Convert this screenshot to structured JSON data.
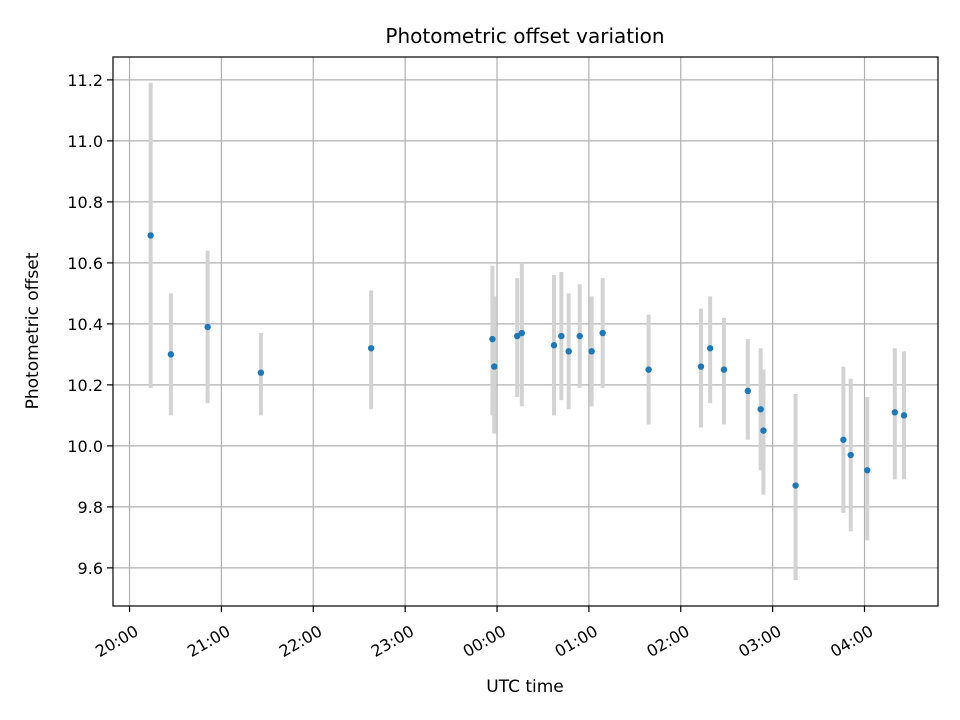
{
  "chart_data": {
    "type": "scatter",
    "title": "Photometric offset variation",
    "xlabel": "UTC time",
    "ylabel": "Photometric offset",
    "grid": true,
    "x_unit": "UTC time (hours)",
    "xlim": [
      19.82,
      28.8
    ],
    "ylim": [
      9.475,
      11.275
    ],
    "x_ticks": [
      {
        "value": 20,
        "label": "20:00"
      },
      {
        "value": 21,
        "label": "21:00"
      },
      {
        "value": 22,
        "label": "22:00"
      },
      {
        "value": 23,
        "label": "23:00"
      },
      {
        "value": 24,
        "label": "00:00"
      },
      {
        "value": 25,
        "label": "01:00"
      },
      {
        "value": 26,
        "label": "02:00"
      },
      {
        "value": 27,
        "label": "03:00"
      },
      {
        "value": 28,
        "label": "04:00"
      }
    ],
    "y_ticks": [
      {
        "value": 9.6,
        "label": "9.6"
      },
      {
        "value": 9.8,
        "label": "9.8"
      },
      {
        "value": 10.0,
        "label": "10.0"
      },
      {
        "value": 10.2,
        "label": "10.2"
      },
      {
        "value": 10.4,
        "label": "10.4"
      },
      {
        "value": 10.6,
        "label": "10.6"
      },
      {
        "value": 10.8,
        "label": "10.8"
      },
      {
        "value": 11.0,
        "label": "11.0"
      },
      {
        "value": 11.2,
        "label": "11.2"
      }
    ],
    "colors": {
      "marker": "#1f77b4",
      "errorbar": "#d3d3d3",
      "grid": "#b0b0b0"
    },
    "points": [
      {
        "x": 20.23,
        "y": 10.69,
        "lo": 10.19,
        "hi": 11.19
      },
      {
        "x": 20.45,
        "y": 10.3,
        "lo": 10.1,
        "hi": 10.5
      },
      {
        "x": 20.85,
        "y": 10.39,
        "lo": 10.14,
        "hi": 10.64
      },
      {
        "x": 21.43,
        "y": 10.24,
        "lo": 10.1,
        "hi": 10.37
      },
      {
        "x": 22.63,
        "y": 10.32,
        "lo": 10.12,
        "hi": 10.51
      },
      {
        "x": 23.95,
        "y": 10.35,
        "lo": 10.1,
        "hi": 10.59
      },
      {
        "x": 23.97,
        "y": 10.26,
        "lo": 10.04,
        "hi": 10.49
      },
      {
        "x": 24.22,
        "y": 10.36,
        "lo": 10.16,
        "hi": 10.55
      },
      {
        "x": 24.27,
        "y": 10.37,
        "lo": 10.13,
        "hi": 10.6
      },
      {
        "x": 24.62,
        "y": 10.33,
        "lo": 10.1,
        "hi": 10.56
      },
      {
        "x": 24.7,
        "y": 10.36,
        "lo": 10.15,
        "hi": 10.57
      },
      {
        "x": 24.78,
        "y": 10.31,
        "lo": 10.12,
        "hi": 10.5
      },
      {
        "x": 24.9,
        "y": 10.36,
        "lo": 10.19,
        "hi": 10.53
      },
      {
        "x": 25.03,
        "y": 10.31,
        "lo": 10.13,
        "hi": 10.49
      },
      {
        "x": 25.15,
        "y": 10.37,
        "lo": 10.19,
        "hi": 10.55
      },
      {
        "x": 25.65,
        "y": 10.25,
        "lo": 10.07,
        "hi": 10.43
      },
      {
        "x": 26.22,
        "y": 10.26,
        "lo": 10.06,
        "hi": 10.45
      },
      {
        "x": 26.32,
        "y": 10.32,
        "lo": 10.14,
        "hi": 10.49
      },
      {
        "x": 26.47,
        "y": 10.25,
        "lo": 10.07,
        "hi": 10.42
      },
      {
        "x": 26.73,
        "y": 10.18,
        "lo": 10.02,
        "hi": 10.35
      },
      {
        "x": 26.87,
        "y": 10.12,
        "lo": 9.92,
        "hi": 10.32
      },
      {
        "x": 26.9,
        "y": 10.05,
        "lo": 9.84,
        "hi": 10.25
      },
      {
        "x": 27.25,
        "y": 9.87,
        "lo": 9.56,
        "hi": 10.17
      },
      {
        "x": 27.77,
        "y": 10.02,
        "lo": 9.78,
        "hi": 10.26
      },
      {
        "x": 27.85,
        "y": 9.97,
        "lo": 9.72,
        "hi": 10.22
      },
      {
        "x": 28.03,
        "y": 9.92,
        "lo": 9.69,
        "hi": 10.16
      },
      {
        "x": 28.33,
        "y": 10.11,
        "lo": 9.89,
        "hi": 10.32
      },
      {
        "x": 28.43,
        "y": 10.1,
        "lo": 9.89,
        "hi": 10.31
      }
    ]
  }
}
